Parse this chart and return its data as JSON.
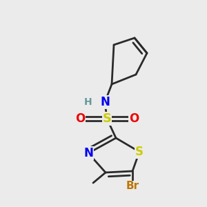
{
  "bg": "#ebebeb",
  "bond_color": "#2a2a2a",
  "bond_lw": 2.0,
  "colors": {
    "S": "#cccc00",
    "N_tz": "#0000ee",
    "N_nh": "#0000ee",
    "O": "#ee0000",
    "Br": "#bb7700",
    "H": "#669999",
    "C": "#2a2a2a"
  },
  "fs": 12,
  "fs_small": 10,
  "figsize": [
    3.0,
    3.0
  ],
  "dpi": 100
}
